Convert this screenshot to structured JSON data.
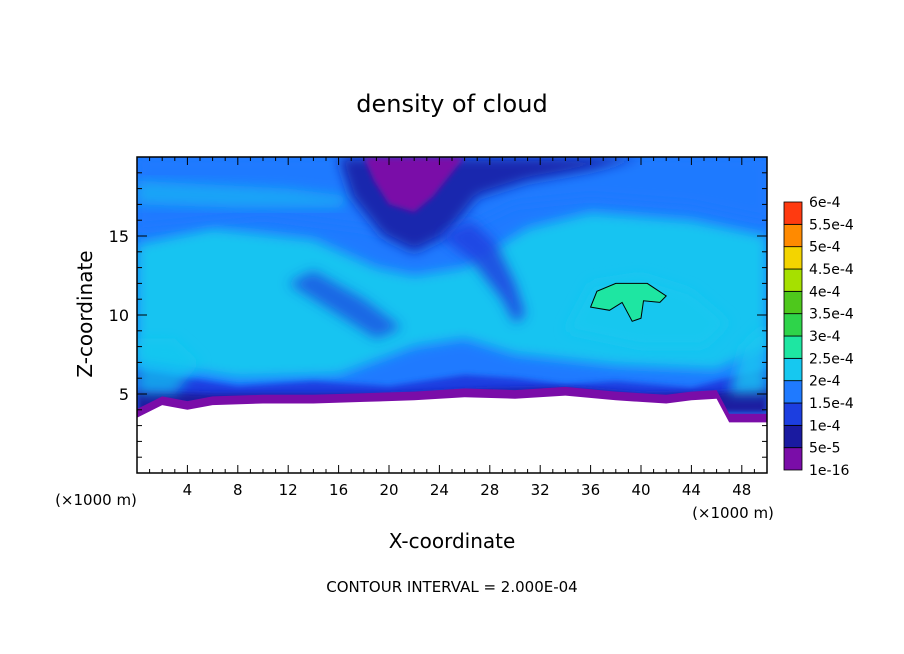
{
  "chart_data": {
    "type": "heatmap",
    "title": "density of cloud",
    "xlabel": "X-coordinate",
    "ylabel": "Z-coordinate",
    "x_unit_label_left": "(×1000 m)",
    "x_unit_label_right": "(×1000 m)",
    "footer": "CONTOUR INTERVAL = 2.000E-04",
    "xlim": [
      0,
      50
    ],
    "ylim": [
      0,
      20
    ],
    "x_ticks": [
      4,
      8,
      12,
      16,
      20,
      24,
      28,
      32,
      36,
      40,
      44,
      48
    ],
    "x_tick_labels": [
      "4",
      "8",
      "12",
      "16",
      "20",
      "24",
      "28",
      "32",
      "36",
      "40",
      "44",
      "48"
    ],
    "y_ticks": [
      5,
      10,
      15
    ],
    "y_tick_labels": [
      "5",
      "10",
      "15"
    ],
    "colorbar": {
      "levels": [
        "1e-16",
        "5e-5",
        "1e-4",
        "1.5e-4",
        "2e-4",
        "2.5e-4",
        "3e-4",
        "3.5e-4",
        "4e-4",
        "4.5e-4",
        "5e-4",
        "5.5e-4",
        "6e-4"
      ],
      "colors": [
        "#7a0da8",
        "#1a1aa0",
        "#1c3ee0",
        "#1f7aff",
        "#16c8f0",
        "#1ee6a2",
        "#2ed44a",
        "#4ec81c",
        "#a6e000",
        "#f3d400",
        "#ff8a00",
        "#ff3a10",
        "#ff6f6f"
      ]
    },
    "field_description_regions": [
      {
        "region": "lower atmosphere z≈4-5",
        "value_approx": "5e-5 to 1e-4"
      },
      {
        "region": "mid layer z≈6-14",
        "value_approx": "1.5e-4 to 2e-4"
      },
      {
        "region": "upper layer z≈15-20",
        "value_approx": "1e-4 to 1.5e-4"
      },
      {
        "region": "plume x≈18-26 z≈15-20",
        "value_approx": "1e-16"
      },
      {
        "region": "cell x≈36-42 z≈10-12",
        "value_approx": "2e-4"
      }
    ],
    "terrain_surface_z": [
      [
        0,
        3.5
      ],
      [
        2,
        4.3
      ],
      [
        4,
        4.0
      ],
      [
        6,
        4.3
      ],
      [
        10,
        4.4
      ],
      [
        14,
        4.4
      ],
      [
        18,
        4.5
      ],
      [
        22,
        4.6
      ],
      [
        26,
        4.8
      ],
      [
        30,
        4.7
      ],
      [
        34,
        4.9
      ],
      [
        38,
        4.6
      ],
      [
        42,
        4.4
      ],
      [
        44,
        4.6
      ],
      [
        46,
        4.7
      ],
      [
        47,
        3.2
      ],
      [
        50,
        3.2
      ]
    ],
    "grid": false,
    "legend_placement": "right"
  }
}
